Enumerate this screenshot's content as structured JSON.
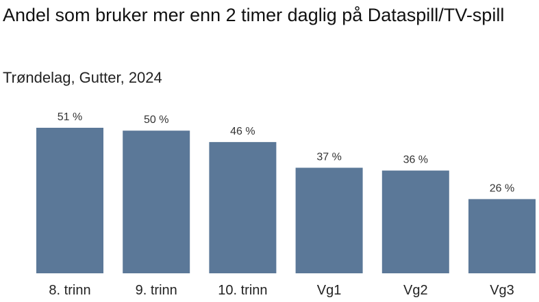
{
  "chart_data": {
    "type": "bar",
    "title": "Andel som bruker mer enn 2 timer daglig på Dataspill/TV-spill",
    "subtitle": "Trøndelag, Gutter, 2024",
    "categories": [
      "8. trinn",
      "9. trinn",
      "10. trinn",
      "Vg1",
      "Vg2",
      "Vg3"
    ],
    "values": [
      51,
      50,
      46,
      37,
      36,
      26
    ],
    "value_labels": [
      "51 %",
      "50 %",
      "46 %",
      "37 %",
      "36 %",
      "26 %"
    ],
    "unit": "%",
    "ylim": [
      0,
      51
    ],
    "grid": false,
    "legend": "none",
    "bar_color": "#5b7898"
  }
}
